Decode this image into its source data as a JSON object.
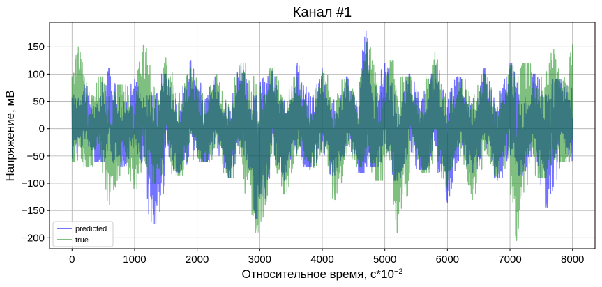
{
  "chart_data": {
    "type": "line",
    "title": "Канал #1",
    "xlabel": "Относительное время, c*10",
    "xlabel_exponent": "−2",
    "ylabel": "Напряжение, мВ",
    "xlim": [
      -360,
      8360
    ],
    "ylim": [
      -220,
      195
    ],
    "x_ticks": [
      0,
      1000,
      2000,
      3000,
      4000,
      5000,
      6000,
      7000,
      8000
    ],
    "x_tick_labels": [
      "0",
      "1000",
      "2000",
      "3000",
      "4000",
      "5000",
      "6000",
      "7000",
      "8000"
    ],
    "y_ticks": [
      -200,
      -150,
      -100,
      -50,
      0,
      50,
      100,
      150
    ],
    "y_tick_labels": [
      "−200",
      "−150",
      "−100",
      "−50",
      "0",
      "50",
      "100",
      "150"
    ],
    "grid": true,
    "legend_position": "lower-left",
    "series": [
      {
        "name": "predicted",
        "color": "#0000ff",
        "opacity": 0.55,
        "x": [
          0,
          200,
          400,
          600,
          800,
          1000,
          1200,
          1340,
          1500,
          1700,
          1900,
          2100,
          2300,
          2500,
          2700,
          2900,
          2960,
          3200,
          3400,
          3600,
          3800,
          4000,
          4200,
          4400,
          4600,
          4700,
          4800,
          5000,
          5200,
          5400,
          5600,
          5800,
          6000,
          6200,
          6400,
          6600,
          6800,
          7000,
          7200,
          7400,
          7600,
          7800,
          8000
        ],
        "y": [
          5,
          80,
          -60,
          110,
          -70,
          90,
          -65,
          -175,
          100,
          -80,
          125,
          -60,
          95,
          -90,
          115,
          -75,
          -165,
          105,
          -95,
          120,
          -70,
          110,
          -85,
          95,
          -80,
          178,
          -70,
          120,
          -95,
          100,
          -75,
          115,
          -135,
          95,
          -80,
          110,
          -90,
          120,
          -85,
          100,
          -145,
          90,
          20
        ]
      },
      {
        "name": "true",
        "color": "#008000",
        "opacity": 0.5,
        "x": [
          0,
          100,
          250,
          450,
          600,
          800,
          1000,
          1150,
          1340,
          1500,
          1700,
          1900,
          2100,
          2300,
          2500,
          2700,
          2960,
          3200,
          3400,
          3600,
          3800,
          4000,
          4200,
          4400,
          4600,
          4720,
          4900,
          5100,
          5200,
          5400,
          5600,
          5800,
          6000,
          6200,
          6400,
          6600,
          6800,
          7000,
          7100,
          7300,
          7500,
          7700,
          7850,
          8000
        ],
        "y": [
          -30,
          150,
          -70,
          95,
          -140,
          80,
          -110,
          155,
          -100,
          130,
          -85,
          110,
          -60,
          100,
          -90,
          120,
          -190,
          110,
          -120,
          95,
          -75,
          105,
          -130,
          90,
          -70,
          165,
          -95,
          125,
          -190,
          95,
          -80,
          140,
          -110,
          90,
          -130,
          100,
          -95,
          115,
          -205,
          120,
          -90,
          145,
          -60,
          155
        ]
      }
    ]
  }
}
